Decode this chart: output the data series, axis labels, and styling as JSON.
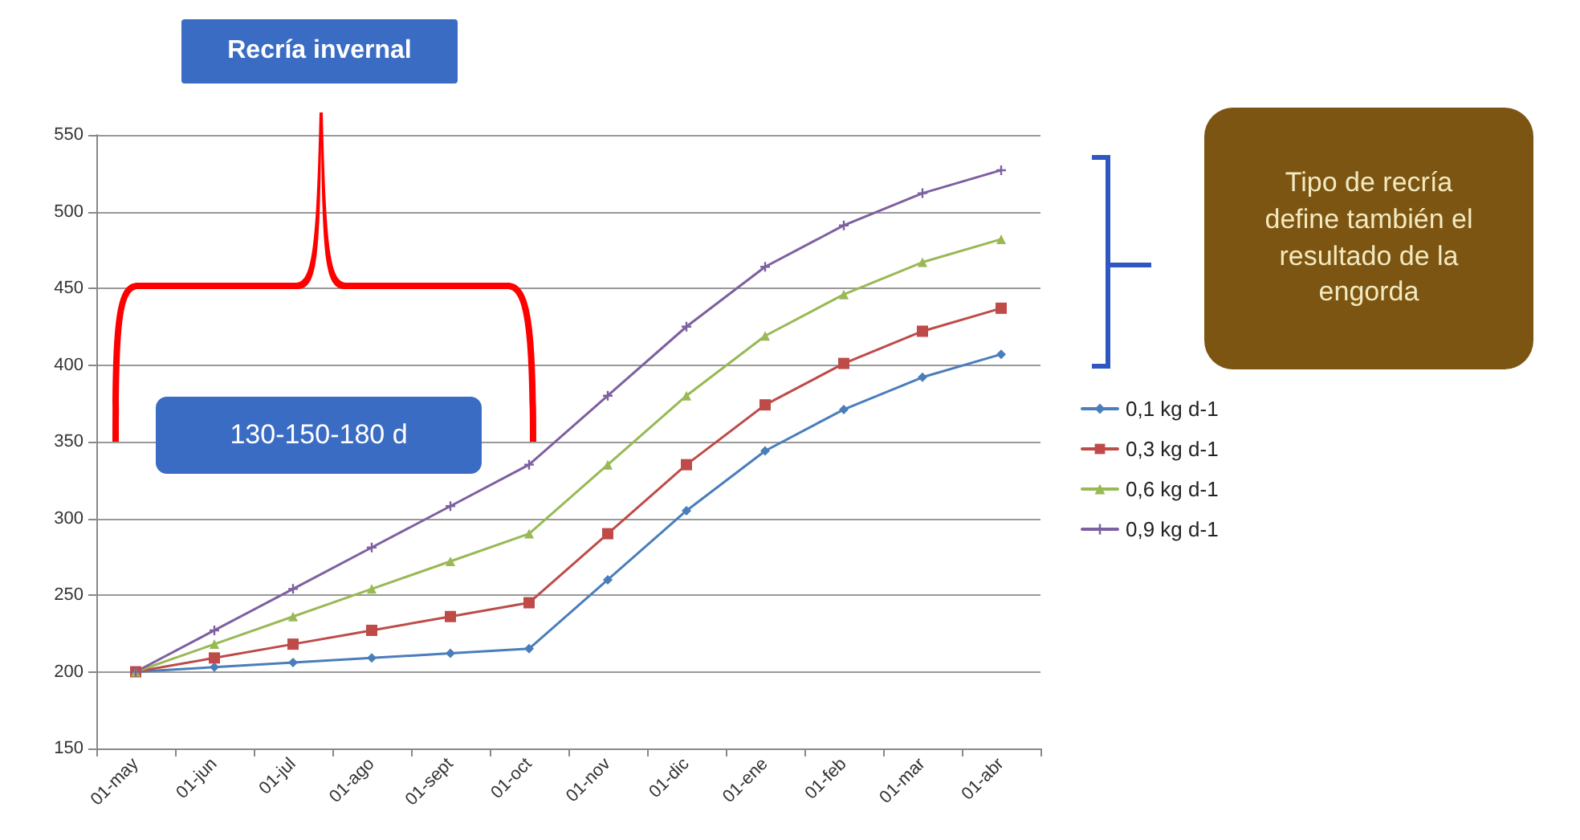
{
  "chart_data": {
    "type": "line",
    "categories": [
      "01-may",
      "01-jun",
      "01-jul",
      "01-ago",
      "01-sept",
      "01-oct",
      "01-nov",
      "01-dic",
      "01-ene",
      "01-feb",
      "01-mar",
      "01-abr"
    ],
    "series": [
      {
        "name": "0,1 kg d-1",
        "color": "#4a7ebb",
        "marker": "diamond",
        "values": [
          200,
          203,
          206,
          209,
          212,
          215,
          260,
          305,
          344,
          371,
          392,
          407
        ]
      },
      {
        "name": "0,3 kg d-1",
        "color": "#be4b48",
        "marker": "square",
        "values": [
          200,
          209,
          218,
          227,
          236,
          245,
          290,
          335,
          374,
          401,
          422,
          437
        ]
      },
      {
        "name": "0,6 kg d-1",
        "color": "#98b954",
        "marker": "triangle",
        "values": [
          200,
          218,
          236,
          254,
          272,
          290,
          335,
          380,
          419,
          446,
          467,
          482
        ]
      },
      {
        "name": "0,9 kg d-1",
        "color": "#7d60a0",
        "marker": "cross",
        "values": [
          200,
          227,
          254,
          281,
          308,
          335,
          380,
          425,
          464,
          491,
          512,
          527
        ]
      }
    ],
    "ylim": [
      150,
      550
    ],
    "yticks": [
      150,
      200,
      250,
      300,
      350,
      400,
      450,
      500,
      550
    ],
    "grid": "y",
    "legend": "right",
    "line_style": "solid",
    "annotations": [
      "Recría invernal",
      "130-150-180 d",
      "Tipo de recría define también el resultado de la engorda"
    ]
  }
}
